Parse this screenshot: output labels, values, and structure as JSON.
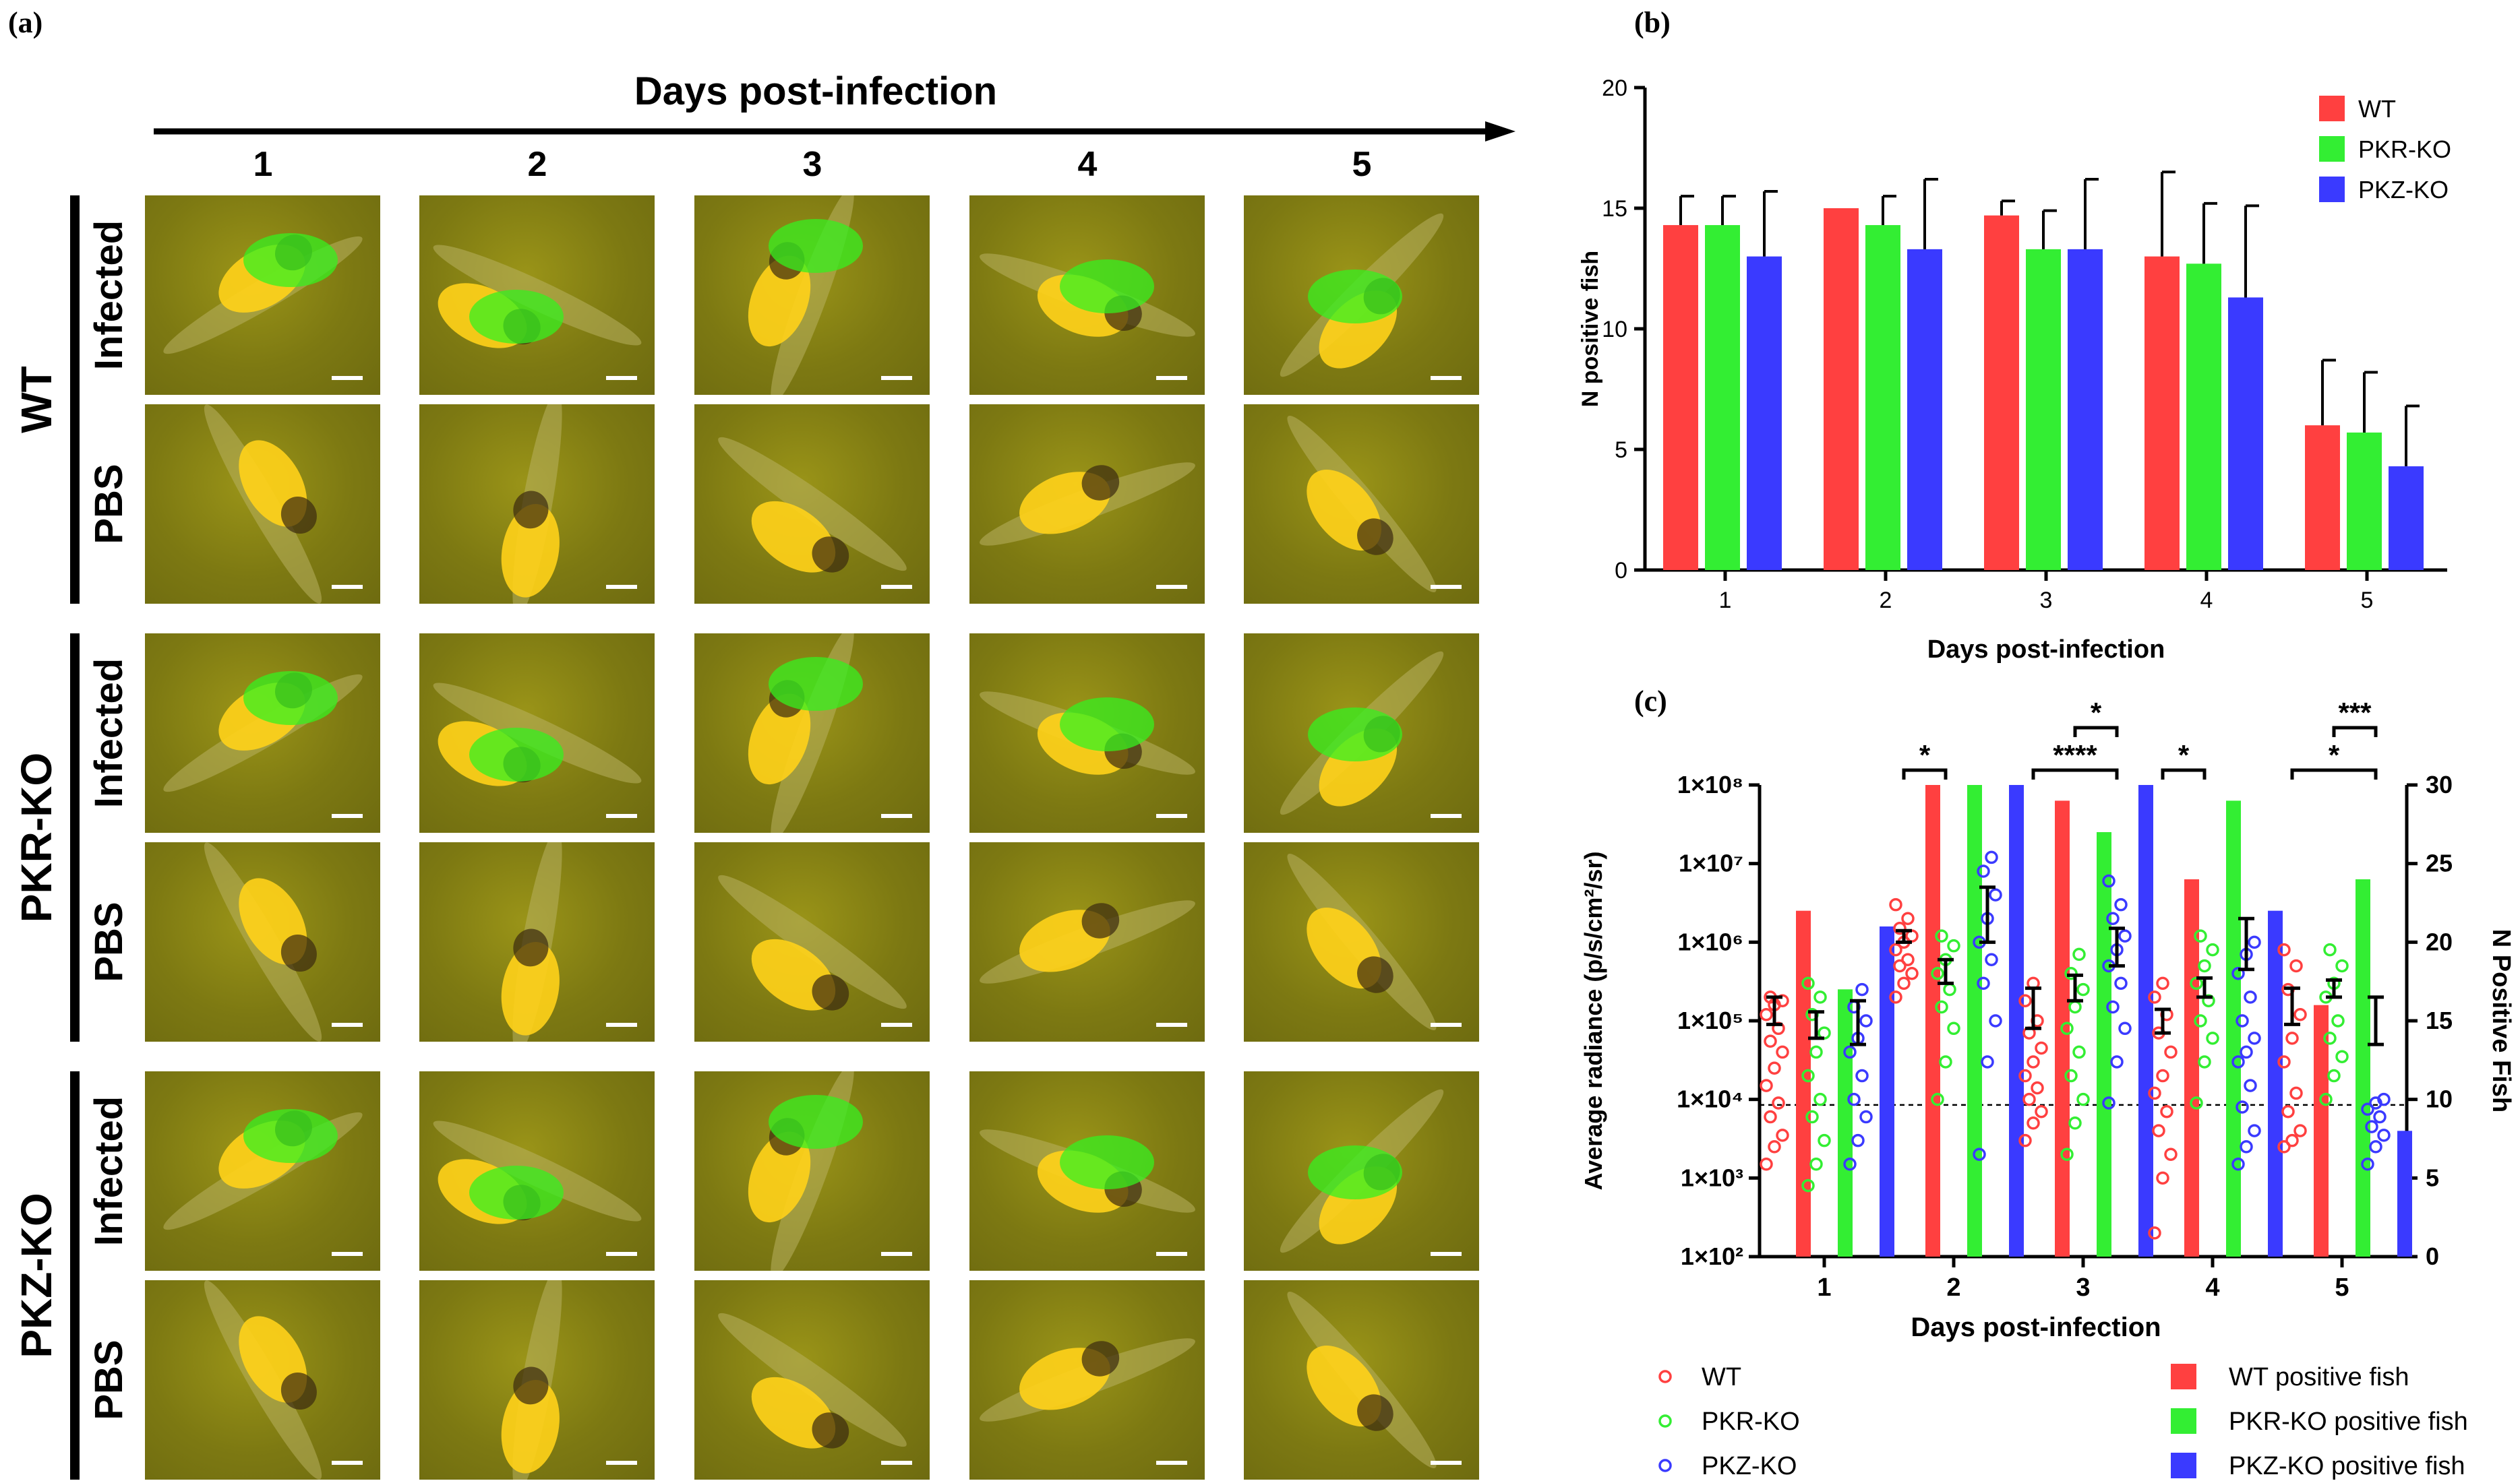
{
  "panel_a": {
    "label": "(a)",
    "arrow_title": "Days post-infection",
    "days": [
      "1",
      "2",
      "3",
      "4",
      "5"
    ],
    "groups": [
      {
        "name": "WT",
        "rows": [
          "Infected",
          "PBS"
        ]
      },
      {
        "name": "PKR-KO",
        "rows": [
          "Infected",
          "PBS"
        ]
      },
      {
        "name": "PKZ-KO",
        "rows": [
          "Infected",
          "PBS"
        ]
      }
    ]
  },
  "colors": {
    "wt": "#ff4040",
    "pkr": "#33ee33",
    "pkz": "#3a3aff"
  },
  "chart_data": [
    {
      "panel": "(b)",
      "type": "bar",
      "title": "",
      "xlabel": "Days post-infection",
      "ylabel": "N positive fish",
      "categories": [
        "1",
        "2",
        "3",
        "4",
        "5"
      ],
      "ylim": [
        0,
        20
      ],
      "yticks": [
        "0",
        "5",
        "10",
        "15",
        "20"
      ],
      "series": [
        {
          "name": "WT",
          "values": [
            14.3,
            15.0,
            14.7,
            13.0,
            6.0
          ],
          "error": [
            1.2,
            0.0,
            0.6,
            3.5,
            2.7
          ]
        },
        {
          "name": "PKR-KO",
          "values": [
            14.3,
            14.3,
            13.3,
            12.7,
            5.7
          ],
          "error": [
            1.2,
            1.2,
            1.6,
            2.5,
            2.5
          ]
        },
        {
          "name": "PKZ-KO",
          "values": [
            13.0,
            13.3,
            13.3,
            11.3,
            4.3
          ],
          "error": [
            2.7,
            2.9,
            2.9,
            3.8,
            2.5
          ]
        }
      ],
      "legend": [
        "WT",
        "PKR-KO",
        "PKZ-KO"
      ]
    },
    {
      "panel": "(c)",
      "type": "scatter",
      "xlabel": "Days post-infection",
      "ylabel": "Average radiance (p/s/cm²/sr)",
      "y2label": "N Positive Fish",
      "categories": [
        "1",
        "2",
        "3",
        "4",
        "5"
      ],
      "yscale": "log",
      "ylim": [
        100,
        100000000
      ],
      "yticks": [
        "1×10²",
        "1×10³",
        "1×10⁴",
        "1×10⁵",
        "1×10⁶",
        "1×10⁷",
        "1×10⁸"
      ],
      "y2lim": [
        0,
        30
      ],
      "y2ticks": [
        "0",
        "5",
        "10",
        "15",
        "20",
        "25",
        "30"
      ],
      "threshold": 8500,
      "positive_fish": {
        "WT": [
          22,
          30,
          29,
          24,
          16
        ],
        "PKR-KO": [
          17,
          30,
          27,
          29,
          24
        ],
        "PKZ-KO": [
          21,
          30,
          30,
          22,
          8
        ]
      },
      "means": {
        "WT": [
          [
            90000,
            200000
          ],
          [
            1000000,
            1400000
          ],
          [
            80000,
            260000
          ],
          [
            70000,
            140000
          ],
          [
            90000,
            260000
          ]
        ],
        "PKR-KO": [
          [
            60000,
            130000
          ],
          [
            300000,
            600000
          ],
          [
            180000,
            380000
          ],
          [
            200000,
            350000
          ],
          [
            200000,
            330000
          ]
        ],
        "PKZ-KO": [
          [
            50000,
            180000
          ],
          [
            1000000,
            5000000
          ],
          [
            500000,
            1500000
          ],
          [
            450000,
            2000000
          ],
          [
            50000,
            200000
          ]
        ]
      },
      "points": {
        "WT": [
          [
            1500,
            2500,
            3500,
            6000,
            9000,
            15000,
            25000,
            40000,
            55000,
            80000,
            120000,
            160000,
            180000,
            200000
          ],
          [
            200000,
            300000,
            400000,
            500000,
            600000,
            800000,
            1000000,
            1200000,
            1500000,
            2000000,
            3000000
          ],
          [
            3000,
            5000,
            7000,
            10000,
            14000,
            20000,
            30000,
            45000,
            70000,
            100000,
            180000,
            300000
          ],
          [
            200,
            1000,
            2000,
            4000,
            7000,
            12000,
            20000,
            40000,
            70000,
            120000,
            200000,
            300000
          ],
          [
            2500,
            3000,
            4000,
            7000,
            12000,
            30000,
            60000,
            120000,
            250000,
            500000,
            800000
          ]
        ],
        "PKR-KO": [
          [
            800,
            1500,
            3000,
            6000,
            10000,
            20000,
            40000,
            70000,
            120000,
            200000,
            300000
          ],
          [
            10000,
            30000,
            80000,
            150000,
            250000,
            400000,
            600000,
            900000,
            1200000
          ],
          [
            2000,
            5000,
            10000,
            20000,
            40000,
            80000,
            150000,
            250000,
            400000,
            700000
          ],
          [
            9000,
            30000,
            60000,
            100000,
            180000,
            300000,
            500000,
            800000,
            1200000
          ],
          [
            10000,
            20000,
            35000,
            60000,
            100000,
            200000,
            300000,
            500000,
            800000
          ]
        ],
        "PKZ-KO": [
          [
            1500,
            3000,
            6000,
            10000,
            20000,
            40000,
            60000,
            100000,
            150000,
            250000
          ],
          [
            2000,
            30000,
            100000,
            300000,
            600000,
            1000000,
            2000000,
            4000000,
            8000000,
            12000000
          ],
          [
            9000,
            30000,
            80000,
            150000,
            300000,
            500000,
            800000,
            1200000,
            2000000,
            3000000,
            6000000
          ],
          [
            1500,
            2500,
            4000,
            8000,
            15000,
            30000,
            40000,
            60000,
            100000,
            200000,
            400000,
            700000,
            1000000
          ],
          [
            1500,
            2500,
            3500,
            4500,
            6000,
            7500,
            9000,
            10000
          ]
        ]
      },
      "significance": [
        {
          "label": "*",
          "day": 2,
          "from": "WT",
          "to": "PKR-KO",
          "level": 0
        },
        {
          "label": "****",
          "day": 3,
          "from": "WT",
          "to": "PKZ-KO",
          "level": 0
        },
        {
          "label": "*",
          "day": 3,
          "from": "PKR-KO",
          "to": "PKZ-KO",
          "level": 1
        },
        {
          "label": "*",
          "day": 4,
          "from": "WT",
          "to": "PKR-KO",
          "level": 0
        },
        {
          "label": "*",
          "day": 5,
          "from": "WT",
          "to": "PKZ-KO",
          "level": 0
        },
        {
          "label": "***",
          "day": 5,
          "from": "PKR-KO",
          "to": "PKZ-KO",
          "level": 1
        }
      ],
      "legend_points": [
        "WT",
        "PKR-KO",
        "PKZ-KO"
      ],
      "legend_bars": [
        "WT positive fish",
        "PKR-KO positive fish",
        "PKZ-KO positive fish"
      ]
    }
  ]
}
